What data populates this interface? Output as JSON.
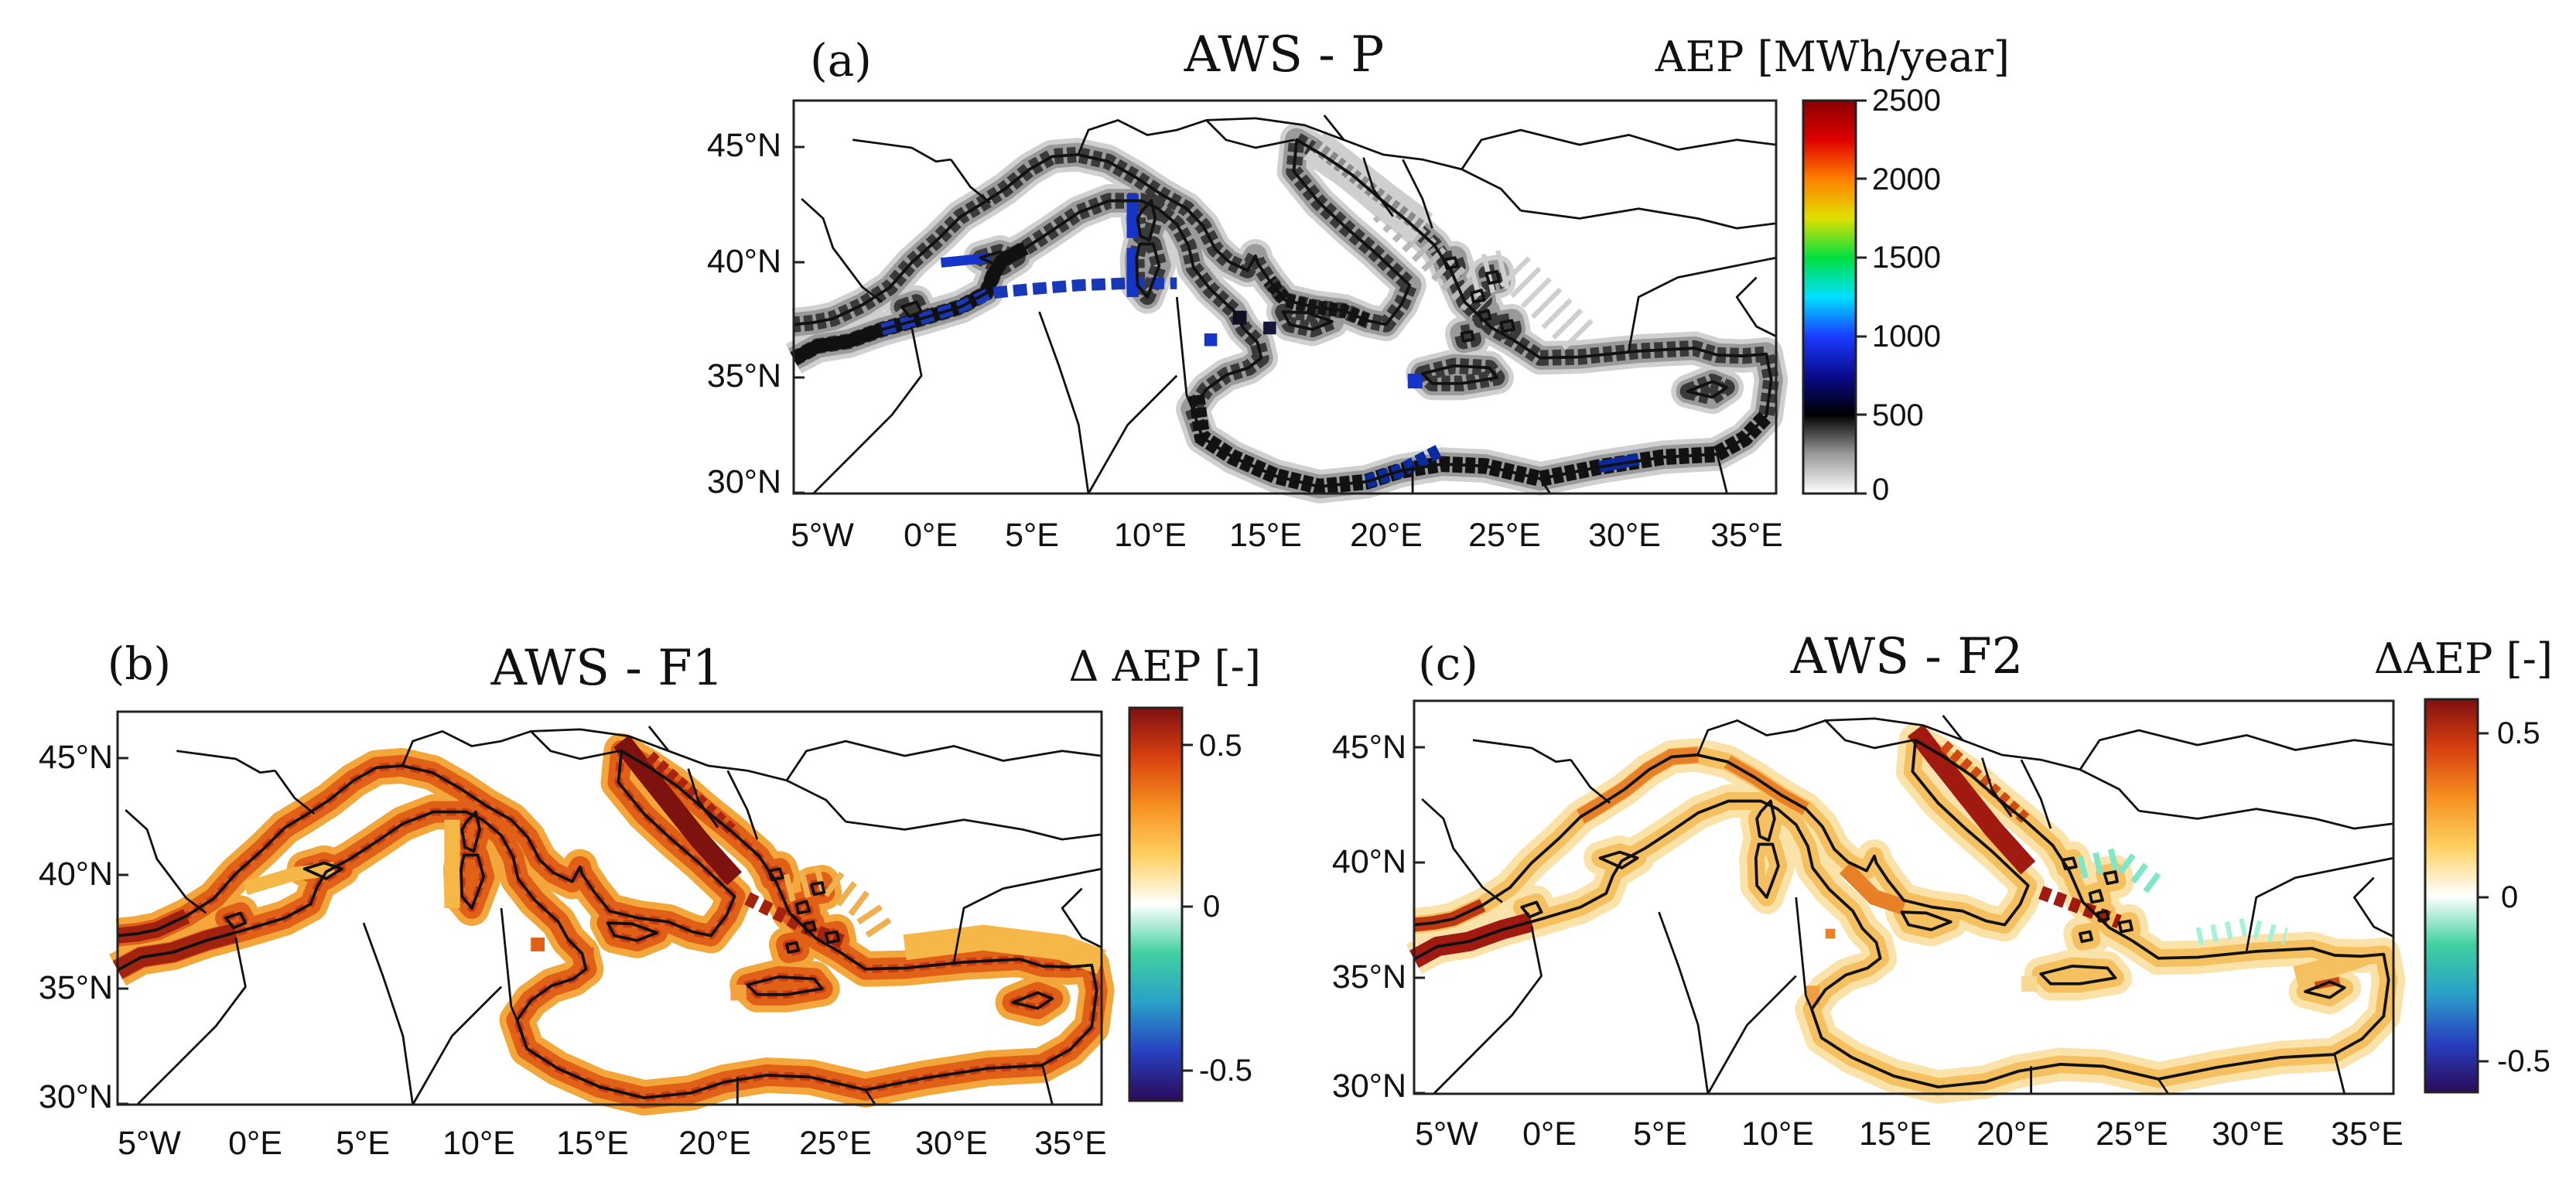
{
  "panels": [
    {
      "id": "a",
      "label": "(a)",
      "title": "AWS - P",
      "colorbar_label": "AEP [MWh/year]",
      "colorbar_ticks": [
        "2500",
        "2000",
        "1500",
        "1000",
        "500",
        "0"
      ],
      "colorbar_range": [
        0,
        2500
      ],
      "colormap": [
        "#ffffff",
        "#9a9a9a",
        "#000000",
        "#0a0a90",
        "#1a3cff",
        "#00e0ff",
        "#00e040",
        "#e0e000",
        "#ff8000",
        "#e00000",
        "#8a0000"
      ]
    },
    {
      "id": "b",
      "label": "(b)",
      "title": "AWS - F1",
      "colorbar_label": "Δ AEP [-]",
      "colorbar_ticks": [
        "0.5",
        "0",
        "-0.5"
      ],
      "colorbar_range": [
        -0.6,
        0.6
      ],
      "colormap": [
        "#2a0a5a",
        "#2840c0",
        "#2aa0c8",
        "#40d0a0",
        "#ffffff",
        "#ffd060",
        "#f59020",
        "#d84010",
        "#801010"
      ]
    },
    {
      "id": "c",
      "label": "(c)",
      "title": "AWS - F2",
      "colorbar_label": "ΔAEP [-]",
      "colorbar_ticks": [
        "0.5",
        "0",
        "-0.5"
      ],
      "colorbar_range": [
        -0.6,
        0.6
      ],
      "colormap": [
        "#2a0a5a",
        "#2840c0",
        "#2aa0c8",
        "#40d0a0",
        "#ffffff",
        "#ffd060",
        "#f59020",
        "#d84010",
        "#801010"
      ]
    }
  ],
  "lat_ticks": [
    "45°N",
    "40°N",
    "35°N",
    "30°N"
  ],
  "lon_ticks": [
    "5°W",
    "0°E",
    "5°E",
    "10°E",
    "15°E",
    "20°E",
    "25°E",
    "30°E",
    "35°E"
  ],
  "colors": {
    "p_shore": "#5a5a5a",
    "p_near": "#1a1a1a",
    "p_open_blue": "#1535c8",
    "f1_band": "#e06018",
    "f1_inner": "#c83a12",
    "f1_hot": "#8c1410",
    "f1_light": "#f6b040",
    "f2_band": "#f5c060",
    "f2_mid": "#e88028",
    "f2_hot": "#a01a12",
    "f2_cool": "#70e0c0"
  }
}
